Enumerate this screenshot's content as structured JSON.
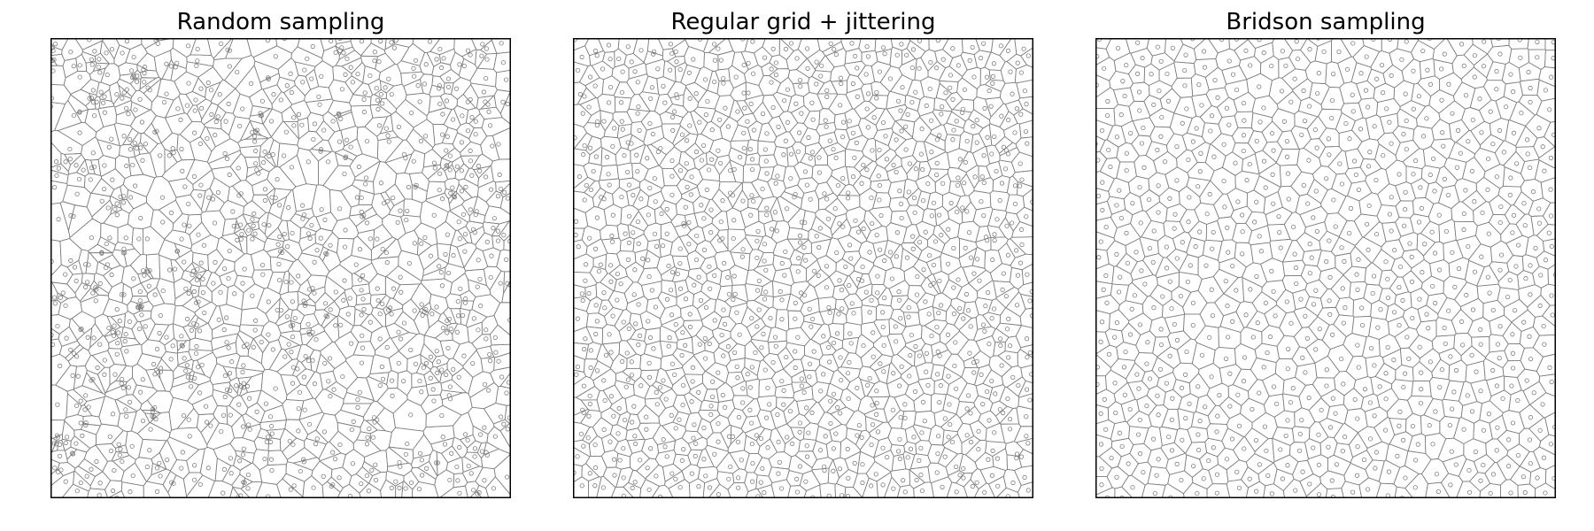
{
  "figure": {
    "panels": [
      {
        "title": "Random sampling",
        "method": "random",
        "points": 1000
      },
      {
        "title": "Regular grid + jittering",
        "method": "jittered_grid",
        "points": 1024
      },
      {
        "title": "Bridson sampling",
        "method": "bridson",
        "points": 1000
      }
    ],
    "colors": {
      "cell_edges": "#7f7f7f",
      "points": "#7f7f7f",
      "frame": "#000000",
      "background": "#ffffff"
    }
  }
}
